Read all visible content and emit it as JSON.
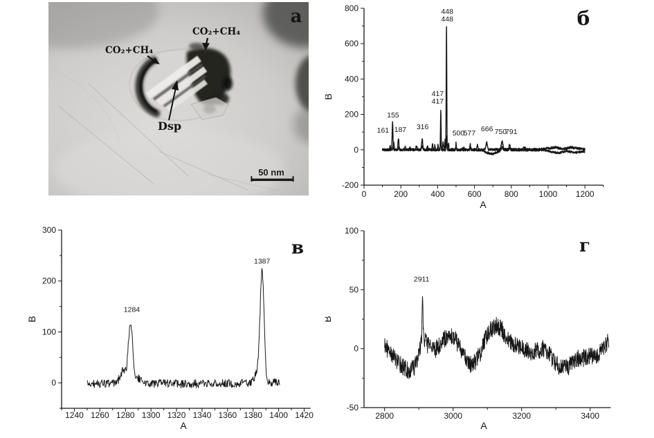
{
  "colors": {
    "ink": "#161616",
    "background": "#ffffff",
    "micrograph_base": "#cecdcb"
  },
  "panel_a": {
    "label": "a",
    "scale_bar_text": "50 nm",
    "labels": {
      "co2_ch4_left": "CO₂+CH₄",
      "co2_ch4_right": "CO₂+CH₄",
      "dsp": "Dsp"
    }
  },
  "chart_data": [
    {
      "id": "panel-b",
      "panel_label": "б",
      "type": "line",
      "xlabel": "A",
      "ylabel": "B",
      "xlim": [
        0,
        1300
      ],
      "ylim": [
        -200,
        800
      ],
      "xticks": [
        0,
        200,
        400,
        600,
        800,
        1000,
        1200
      ],
      "yticks": [
        -200,
        0,
        200,
        400,
        600,
        800
      ],
      "x_minor_step": 100,
      "y_minor_step": 100,
      "data_range": [
        100,
        1200
      ],
      "annotations": [
        {
          "lines": [
            "161"
          ],
          "x": 103,
          "y": 97
        },
        {
          "lines": [
            "155"
          ],
          "x": 158,
          "y": 183
        },
        {
          "lines": [
            "187"
          ],
          "x": 197,
          "y": 101
        },
        {
          "lines": [
            "316"
          ],
          "x": 318,
          "y": 116
        },
        {
          "lines": [
            "417",
            "417"
          ],
          "x": 400,
          "y": 304
        },
        {
          "lines": [
            "448",
            "448"
          ],
          "x": 452,
          "y": 769
        },
        {
          "lines": [
            "500"
          ],
          "x": 513,
          "y": 82
        },
        {
          "lines": [
            "577"
          ],
          "x": 573,
          "y": 82
        },
        {
          "lines": [
            "666"
          ],
          "x": 668,
          "y": 105
        },
        {
          "lines": [
            "750"
          ],
          "x": 742,
          "y": 89
        },
        {
          "lines": [
            "791"
          ],
          "x": 800,
          "y": 89
        }
      ],
      "series": [
        {
          "name": "spectrum-1",
          "seed": 101,
          "noise": 7,
          "baseline": [
            [
              100,
              0
            ],
            [
              950,
              2
            ],
            [
              1000,
              8
            ],
            [
              1040,
              14
            ],
            [
              1080,
              4
            ],
            [
              1120,
              14
            ],
            [
              1160,
              8
            ],
            [
              1200,
              2
            ]
          ],
          "peaks": [
            [
              142,
              22,
              2
            ],
            [
              155,
              158,
              2.2
            ],
            [
              187,
              66,
              2.4
            ],
            [
              222,
              16,
              3
            ],
            [
              250,
              14,
              4
            ],
            [
              285,
              20,
              3
            ],
            [
              316,
              58,
              3.2
            ],
            [
              345,
              16,
              3
            ],
            [
              372,
              33,
              1.8
            ],
            [
              385,
              28,
              1.8
            ],
            [
              402,
              28,
              1.8
            ],
            [
              417,
              222,
              1.7
            ],
            [
              430,
              50,
              1.8
            ],
            [
              440,
              55,
              1.5
            ],
            [
              448,
              702,
              1.6
            ],
            [
              459,
              38,
              1.8
            ],
            [
              500,
              40,
              1.4
            ],
            [
              540,
              14,
              3
            ],
            [
              577,
              30,
              2.2
            ],
            [
              616,
              24,
              2.4
            ],
            [
              666,
              40,
              3.5
            ],
            [
              750,
              45,
              4.5
            ],
            [
              791,
              28,
              2.8
            ],
            [
              870,
              10,
              6
            ]
          ]
        },
        {
          "name": "spectrum-2",
          "seed": 202,
          "noise": 6,
          "baseline": [
            [
              100,
              0
            ],
            [
              640,
              -2
            ],
            [
              672,
              -18
            ],
            [
              700,
              -24
            ],
            [
              730,
              -10
            ],
            [
              760,
              -2
            ],
            [
              980,
              -2
            ],
            [
              1020,
              -12
            ],
            [
              1060,
              -18
            ],
            [
              1100,
              -6
            ],
            [
              1140,
              -16
            ],
            [
              1180,
              -12
            ],
            [
              1200,
              -10
            ]
          ],
          "peaks": [
            [
              161,
              42,
              2.4
            ],
            [
              190,
              18,
              2.6
            ],
            [
              316,
              22,
              3
            ],
            [
              417,
              55,
              1.8
            ],
            [
              448,
              75,
              1.8
            ],
            [
              500,
              15,
              2
            ],
            [
              577,
              12,
              2.5
            ],
            [
              750,
              18,
              4
            ],
            [
              791,
              12,
              3
            ]
          ]
        }
      ]
    },
    {
      "id": "panel-c",
      "panel_label": "в",
      "type": "line",
      "xlabel": "A",
      "ylabel": "B",
      "xlim": [
        1230,
        1425
      ],
      "ylim": [
        -50,
        300
      ],
      "xticks": [
        1240,
        1260,
        1280,
        1300,
        1320,
        1340,
        1360,
        1380,
        1400,
        1420
      ],
      "yticks": [
        0,
        100,
        200,
        300
      ],
      "x_minor_step": 10,
      "y_minor_step": 50,
      "data_range": [
        1250,
        1401
      ],
      "annotations": [
        {
          "lines": [
            "1284"
          ],
          "x": 1285,
          "y": 139
        },
        {
          "lines": [
            "1387"
          ],
          "x": 1387,
          "y": 234
        }
      ],
      "series": [
        {
          "name": "spectrum",
          "seed": 303,
          "noise": 8,
          "baseline": [
            [
              1250,
              -2
            ],
            [
              1300,
              -1
            ],
            [
              1330,
              -2
            ],
            [
              1360,
              -1
            ],
            [
              1401,
              0
            ]
          ],
          "peaks": [
            [
              1278,
              25,
              2.2
            ],
            [
              1284,
              120,
              1.7
            ],
            [
              1290,
              10,
              2
            ],
            [
              1383,
              20,
              1.8
            ],
            [
              1387,
              220,
              1.55
            ]
          ]
        }
      ]
    },
    {
      "id": "panel-d",
      "panel_label": "г",
      "type": "line",
      "xlabel": "A",
      "ylabel": "B",
      "xlim": [
        2740,
        3460
      ],
      "ylim": [
        -50,
        100
      ],
      "xticks": [
        2800,
        3000,
        3200,
        3400
      ],
      "yticks": [
        -50,
        0,
        50,
        100
      ],
      "x_minor_step": 100,
      "y_minor_step": 25,
      "data_range": [
        2800,
        3455
      ],
      "annotations": [
        {
          "lines": [
            "2911"
          ],
          "x": 2908,
          "y": 57
        }
      ],
      "series": [
        {
          "name": "spectrum",
          "seed": 404,
          "noise": 7.5,
          "baseline": [
            [
              2800,
              3
            ],
            [
              2815,
              -3
            ],
            [
              2830,
              -9
            ],
            [
              2845,
              -13
            ],
            [
              2860,
              -17
            ],
            [
              2875,
              -19
            ],
            [
              2888,
              -15
            ],
            [
              2898,
              -6
            ],
            [
              2906,
              2
            ],
            [
              2911,
              14
            ],
            [
              2918,
              6
            ],
            [
              2930,
              2
            ],
            [
              2945,
              -1
            ],
            [
              2960,
              2
            ],
            [
              2975,
              8
            ],
            [
              2990,
              12
            ],
            [
              3005,
              9
            ],
            [
              3020,
              0
            ],
            [
              3035,
              -8
            ],
            [
              3050,
              -13
            ],
            [
              3065,
              -11
            ],
            [
              3080,
              -3
            ],
            [
              3095,
              8
            ],
            [
              3110,
              16
            ],
            [
              3125,
              20
            ],
            [
              3140,
              17
            ],
            [
              3155,
              10
            ],
            [
              3170,
              4
            ],
            [
              3185,
              2
            ],
            [
              3200,
              0
            ],
            [
              3215,
              -2
            ],
            [
              3230,
              -3
            ],
            [
              3245,
              -2
            ],
            [
              3260,
              0
            ],
            [
              3275,
              -3
            ],
            [
              3290,
              -8
            ],
            [
              3305,
              -14
            ],
            [
              3320,
              -17
            ],
            [
              3335,
              -16
            ],
            [
              3350,
              -11
            ],
            [
              3365,
              -8
            ],
            [
              3380,
              -8
            ],
            [
              3395,
              -6
            ],
            [
              3410,
              -6
            ],
            [
              3425,
              -4
            ],
            [
              3440,
              0
            ],
            [
              3455,
              8
            ]
          ],
          "peaks": [
            [
              2911,
              30,
              1.2
            ]
          ]
        }
      ]
    }
  ]
}
